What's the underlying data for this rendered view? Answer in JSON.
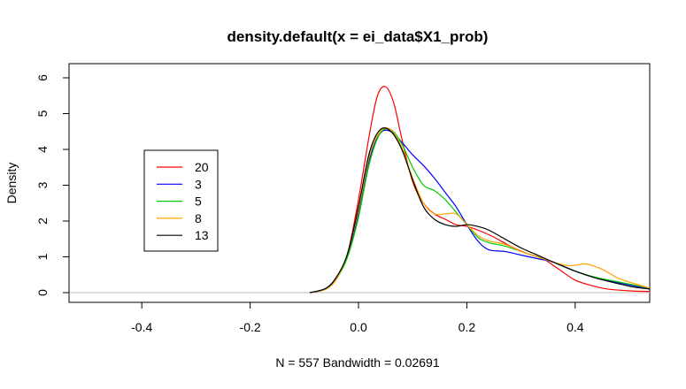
{
  "chart_data": {
    "type": "line",
    "title": "density.default(x = ei_data$X1_prob)",
    "xlabel": "N = 557   Bandwidth = 0.02691",
    "ylabel": "Density",
    "xlim": [
      -0.54,
      0.54
    ],
    "ylim": [
      0,
      6
    ],
    "x_ticks": [
      "-0.4",
      "-0.2",
      "0.0",
      "0.2",
      "0.4"
    ],
    "y_ticks": [
      "0",
      "1",
      "2",
      "3",
      "4",
      "5",
      "6"
    ],
    "grid": false,
    "legend_position": "left",
    "series": [
      {
        "name": "20",
        "color": "#FF0000",
        "x": [
          -0.09,
          -0.06,
          -0.04,
          -0.02,
          0.0,
          0.02,
          0.035,
          0.05,
          0.065,
          0.08,
          0.1,
          0.12,
          0.14,
          0.16,
          0.18,
          0.2,
          0.22,
          0.25,
          0.28,
          0.31,
          0.34,
          0.37,
          0.4,
          0.43,
          0.46,
          0.5,
          0.54
        ],
        "y": [
          0.0,
          0.1,
          0.4,
          1.1,
          2.6,
          4.4,
          5.5,
          5.75,
          5.3,
          4.3,
          3.1,
          2.5,
          2.2,
          2.05,
          1.9,
          1.85,
          1.75,
          1.55,
          1.3,
          1.1,
          0.95,
          0.65,
          0.35,
          0.2,
          0.1,
          0.05,
          0.03
        ]
      },
      {
        "name": "3",
        "color": "#0000FF",
        "x": [
          -0.09,
          -0.06,
          -0.04,
          -0.02,
          0.0,
          0.02,
          0.04,
          0.06,
          0.08,
          0.1,
          0.12,
          0.14,
          0.16,
          0.18,
          0.2,
          0.22,
          0.24,
          0.27,
          0.3,
          0.33,
          0.36,
          0.4,
          0.44,
          0.48,
          0.52,
          0.54
        ],
        "y": [
          0.0,
          0.12,
          0.45,
          1.05,
          2.2,
          3.7,
          4.45,
          4.5,
          4.2,
          3.85,
          3.55,
          3.2,
          2.8,
          2.4,
          1.9,
          1.45,
          1.2,
          1.15,
          1.05,
          0.95,
          0.85,
          0.6,
          0.4,
          0.28,
          0.15,
          0.1
        ]
      },
      {
        "name": "5",
        "color": "#00CC00",
        "x": [
          -0.09,
          -0.06,
          -0.04,
          -0.02,
          0.0,
          0.02,
          0.04,
          0.06,
          0.08,
          0.1,
          0.12,
          0.14,
          0.16,
          0.18,
          0.2,
          0.22,
          0.24,
          0.27,
          0.3,
          0.33,
          0.36,
          0.4,
          0.44,
          0.48,
          0.52,
          0.54
        ],
        "y": [
          0.0,
          0.1,
          0.4,
          1.0,
          2.1,
          3.6,
          4.45,
          4.55,
          4.15,
          3.5,
          3.0,
          2.85,
          2.6,
          2.25,
          1.9,
          1.55,
          1.4,
          1.3,
          1.15,
          1.0,
          0.85,
          0.6,
          0.42,
          0.3,
          0.18,
          0.12
        ]
      },
      {
        "name": "8",
        "color": "#FFA500",
        "x": [
          -0.09,
          -0.06,
          -0.04,
          -0.02,
          0.0,
          0.02,
          0.04,
          0.06,
          0.08,
          0.1,
          0.12,
          0.14,
          0.16,
          0.18,
          0.2,
          0.22,
          0.24,
          0.27,
          0.3,
          0.33,
          0.36,
          0.39,
          0.42,
          0.45,
          0.48,
          0.51,
          0.54
        ],
        "y": [
          0.0,
          0.1,
          0.4,
          1.1,
          2.3,
          3.8,
          4.5,
          4.55,
          4.05,
          3.2,
          2.5,
          2.2,
          2.2,
          2.2,
          1.9,
          1.6,
          1.45,
          1.35,
          1.15,
          1.0,
          0.85,
          0.75,
          0.8,
          0.65,
          0.4,
          0.25,
          0.12
        ]
      },
      {
        "name": "13",
        "color": "#000000",
        "x": [
          -0.09,
          -0.06,
          -0.04,
          -0.02,
          0.0,
          0.02,
          0.04,
          0.06,
          0.08,
          0.1,
          0.12,
          0.14,
          0.16,
          0.18,
          0.2,
          0.22,
          0.24,
          0.27,
          0.3,
          0.33,
          0.36,
          0.4,
          0.44,
          0.48,
          0.51,
          0.54
        ],
        "y": [
          0.0,
          0.12,
          0.45,
          1.1,
          2.4,
          3.9,
          4.55,
          4.5,
          4.0,
          3.15,
          2.4,
          2.05,
          1.9,
          1.85,
          1.9,
          1.85,
          1.75,
          1.5,
          1.25,
          1.05,
          0.85,
          0.6,
          0.4,
          0.25,
          0.15,
          0.1
        ]
      }
    ]
  },
  "colors": {
    "axis": "#000000",
    "zero_line": "#BEBEBE",
    "background": "#FFFFFF"
  }
}
